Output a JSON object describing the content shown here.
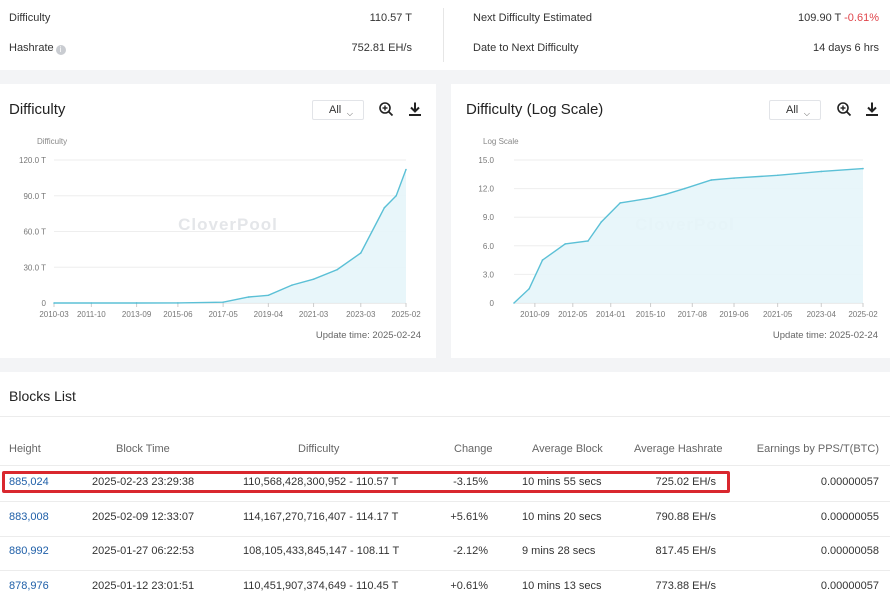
{
  "stats": {
    "difficulty_label": "Difficulty",
    "difficulty_value": "110.57 T",
    "hashrate_label": "Hashrate",
    "hashrate_value": "752.81 EH/s",
    "next_label": "Next Difficulty Estimated",
    "next_value": "109.90 T",
    "next_change": "-0.61%",
    "date_label": "Date to Next Difficulty",
    "date_value": "14 days 6 hrs"
  },
  "difficulty_panel": {
    "title": "Difficulty",
    "range_option": "All",
    "update_time": "Update time: 2025-02-24"
  },
  "log_panel": {
    "title": "Difficulty (Log Scale)",
    "range_option": "All",
    "update_time": "Update time: 2025-02-24"
  },
  "icons": {
    "zoom": "zoom-in-icon",
    "download": "download-icon",
    "info": "info-icon",
    "dropdown": "chevron-down-icon"
  },
  "colors": {
    "line": "#5bc0d6",
    "area": "#e6f5fa",
    "highlight": "#d9272e",
    "negative": "#e0454b",
    "positive": "#2fa84f",
    "link": "#1f5fa8"
  },
  "chart_data": [
    {
      "type": "area",
      "title": "",
      "ylabel": "Difficulty",
      "watermark": "CloverPool",
      "x_ticks": [
        "2010-03",
        "2011-10",
        "2013-09",
        "2015-06",
        "2017-05",
        "2019-04",
        "2021-03",
        "2023-03",
        "2025-02"
      ],
      "y_ticks": [
        "0",
        "30.0 T",
        "60.0 T",
        "90.0 T",
        "120.0 T"
      ],
      "ylim": [
        0,
        120
      ],
      "grid": true,
      "x": [
        "2010-03",
        "2011-10",
        "2013-09",
        "2015-06",
        "2017-05",
        "2018-06",
        "2019-04",
        "2020-04",
        "2021-03",
        "2022-03",
        "2023-03",
        "2024-03",
        "2024-09",
        "2025-02"
      ],
      "values": [
        0,
        0,
        0.02,
        0.05,
        0.7,
        5,
        6.5,
        15,
        20,
        28,
        42,
        80,
        90,
        112
      ]
    },
    {
      "type": "area",
      "title": "",
      "ylabel": "Log Scale",
      "watermark": "CloverPool",
      "x_ticks": [
        "2010-09",
        "2012-05",
        "2014-01",
        "2015-10",
        "2017-08",
        "2019-06",
        "2021-05",
        "2023-04",
        "2025-02"
      ],
      "y_ticks": [
        "0",
        "3.0",
        "6.0",
        "9.0",
        "12.0",
        "15.0"
      ],
      "ylim": [
        0,
        15
      ],
      "grid": true,
      "x": [
        "2009-10",
        "2010-06",
        "2011-01",
        "2012-01",
        "2013-01",
        "2013-08",
        "2014-06",
        "2015-10",
        "2016-06",
        "2017-04",
        "2018-06",
        "2019-06",
        "2021-05",
        "2023-04",
        "2025-02"
      ],
      "values": [
        0,
        1.5,
        4.5,
        6.2,
        6.5,
        8.5,
        10.5,
        11.0,
        11.4,
        12.0,
        12.9,
        13.1,
        13.4,
        13.8,
        14.1
      ]
    }
  ],
  "blocks": {
    "title": "Blocks List",
    "headers": [
      "Height",
      "Block Time",
      "Difficulty",
      "Change",
      "Average Block",
      "Average Hashrate",
      "Earnings by PPS/T(BTC)"
    ],
    "rows": [
      {
        "height": "885,024",
        "time": "2025-02-23 23:29:38",
        "difficulty": "110,568,428,300,952 - 110.57 T",
        "change": "-3.15%",
        "avg_block": "10 mins 55 secs",
        "hashrate": "725.02 EH/s",
        "earnings": "0.00000057"
      },
      {
        "height": "883,008",
        "time": "2025-02-09 12:33:07",
        "difficulty": "114,167,270,716,407 - 114.17 T",
        "change": "+5.61%",
        "avg_block": "10 mins 20 secs",
        "hashrate": "790.88 EH/s",
        "earnings": "0.00000055"
      },
      {
        "height": "880,992",
        "time": "2025-01-27 06:22:53",
        "difficulty": "108,105,433,845,147 - 108.11 T",
        "change": "-2.12%",
        "avg_block": "9 mins 28 secs",
        "hashrate": "817.45 EH/s",
        "earnings": "0.00000058"
      },
      {
        "height": "878,976",
        "time": "2025-01-12 23:01:51",
        "difficulty": "110,451,907,374,649 - 110.45 T",
        "change": "+0.61%",
        "avg_block": "10 mins 13 secs",
        "hashrate": "773.88 EH/s",
        "earnings": "0.00000057"
      }
    ]
  }
}
